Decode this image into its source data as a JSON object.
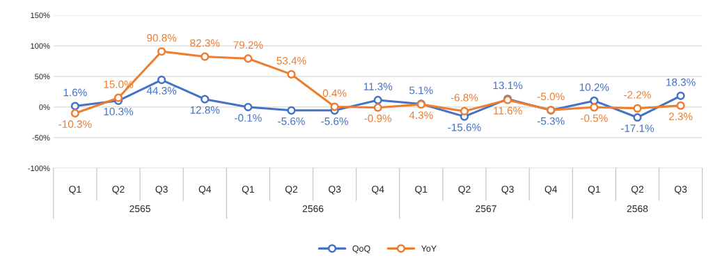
{
  "chart_data": {
    "type": "line",
    "categories": [
      "Q1",
      "Q2",
      "Q3",
      "Q4",
      "Q1",
      "Q2",
      "Q3",
      "Q4",
      "Q1",
      "Q2",
      "Q3",
      "Q4",
      "Q1",
      "Q2",
      "Q3"
    ],
    "series": [
      {
        "name": "QoQ",
        "color": "#4472c4",
        "values": [
          1.6,
          10.3,
          44.3,
          12.8,
          -0.1,
          -5.6,
          -5.6,
          11.3,
          5.1,
          -15.6,
          13.1,
          -5.3,
          10.2,
          -17.1,
          18.3
        ],
        "value_labels": [
          "1.6%",
          "10.3%",
          "44.3%",
          "12.8%",
          "-0.1%",
          "-5.6%",
          "-5.6%",
          "11.3%",
          "5.1%",
          "-15.6%",
          "13.1%",
          "-5.3%",
          "10.2%",
          "-17.1%",
          "18.3%"
        ]
      },
      {
        "name": "YoY",
        "color": "#ed7d31",
        "values": [
          -10.3,
          15.0,
          90.8,
          82.3,
          79.2,
          53.4,
          0.4,
          -0.9,
          4.3,
          -6.8,
          11.6,
          -5.0,
          -0.5,
          -2.2,
          2.3
        ],
        "value_labels": [
          "-10.3%",
          "15.0%",
          "90.8%",
          "82.3%",
          "79.2%",
          "53.4%",
          "0.4%",
          "-0.9%",
          "4.3%",
          "-6.8%",
          "11.6%",
          "-5.0%",
          "-0.5%",
          "-2.2%",
          "2.3%"
        ]
      }
    ],
    "annotations": [
      "2565",
      "2566",
      "2567",
      "2568"
    ],
    "ylim": [
      -100,
      150
    ],
    "yticks": [
      {
        "value": -100,
        "label": "-100%"
      },
      {
        "value": -50,
        "label": "-50%"
      },
      {
        "value": 0,
        "label": "0%"
      },
      {
        "value": 50,
        "label": "50%"
      },
      {
        "value": 100,
        "label": "100%"
      },
      {
        "value": 150,
        "label": "150%"
      }
    ],
    "grid": "y",
    "legend": "bottom",
    "marker": "circle",
    "line_style": "solid"
  }
}
